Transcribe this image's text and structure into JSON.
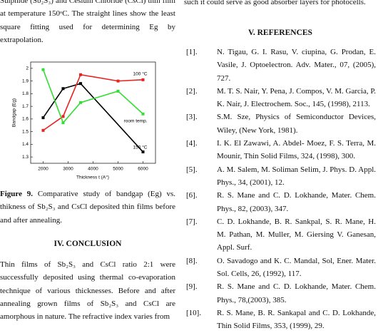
{
  "left_top": [
    "Sulphide (Sb₂S₃) and Cesium Chloride (CsCl) thin film",
    "at temperature 150ᵒC. The straight lines show the least",
    "square fitting used for determining Eg by",
    "extrapolation."
  ],
  "chart_data": {
    "type": "line",
    "x_label": "Thickness t (A°)",
    "y_label": "Bandgap (Eg)",
    "xlim": [
      1500,
      6500
    ],
    "xticks": [
      2000,
      3000,
      4000,
      5000,
      6000
    ],
    "ylim": [
      1.25,
      2.05
    ],
    "yticks": [
      1.3,
      1.4,
      1.5,
      1.6,
      1.7,
      1.8,
      1.9,
      2.0
    ],
    "series": [
      {
        "name": "150 °C",
        "color": "#000000",
        "x": [
          2000,
          2800,
          3500,
          6000
        ],
        "values": [
          1.61,
          1.84,
          1.88,
          1.34
        ]
      },
      {
        "name": "100 °C",
        "color": "#e8231f",
        "x": [
          2000,
          2800,
          3500,
          5000,
          6000
        ],
        "values": [
          1.51,
          1.62,
          1.95,
          1.9,
          1.91
        ]
      },
      {
        "name": "room temp.",
        "color": "#33dd33",
        "x": [
          2000,
          2800,
          3500,
          5000,
          6000
        ],
        "values": [
          1.99,
          1.57,
          1.73,
          1.82,
          1.64
        ]
      }
    ]
  },
  "caption": {
    "label": "Figure 9.",
    "text": "Comparative study of bandgap (Eg) vs. thikness of Sb₂S₃ and CsCl deposited thin films before and after annealing."
  },
  "conclusion": {
    "heading": "IV. CONCLUSION",
    "text": "Thin films of Sb₂S₃ and CsCl ratio 2:1 were successfully deposited using thermal co-evaporation technique of various thicknesses. Before and after annealing grown films of Sb₂S₃ and CsCl are amorphous in nature. The refractive index varies from"
  },
  "right_top": "such it could serve as good absorber layers for photocells.",
  "references": {
    "heading": "V. REFERENCES",
    "items": [
      {
        "num": "[1].",
        "text": "N. Tigau, G. I. Rasu, V. ciupina, G. Prodan, E. Vasile, J. Optoelectron. Adv. Mater., 07, (2005), 727."
      },
      {
        "num": "[2].",
        "text": "M. T. S. Nair, Y. Pena, J. Compos, V. M. Garcia, P. K. Nair, J. Electrochem. Soc., 145, (1998), 2113."
      },
      {
        "num": "[3].",
        "text": "S.M. Sze, Physics of Semiconductor Devices, Wiley, (New York, 1981)."
      },
      {
        "num": "[4].",
        "text": "I. K. El Zawawi, A. Abdel- Moez, F. S. Terra, M. Mounir, Thin Solid Films, 324, (1998), 300."
      },
      {
        "num": "[5].",
        "text": "A. M. Salem, M. Soliman Selim, J. Phys. D. Appl. Phys., 34, (2001), 12."
      },
      {
        "num": "[6].",
        "text": "R. S. Mane and C. D. Lokhande, Mater. Chem. Phys., 82, (2003), 347."
      },
      {
        "num": "[7].",
        "text": "C. D. Lokhande, B. R. Sankpal, S. R. Mane, H. M. Pathan, M. Muller, M. Giersing V. Ganesan, Appl. Surf."
      },
      {
        "num": "[8].",
        "text": "O. Savadogo and K. C. Mandal, Sol, Ener. Mater. Sol. Cells, 26, (1992), 117."
      },
      {
        "num": "[9].",
        "text": "R. S. Mane and C. D. Lokhande, Mater. Chem. Phys., 78,(2003), 385."
      },
      {
        "num": "[10].",
        "text": "R. S. Mane, B. R. Sankapal and C. D. Lokhande, Thin Solid Films, 353, (1999), 29."
      }
    ]
  }
}
